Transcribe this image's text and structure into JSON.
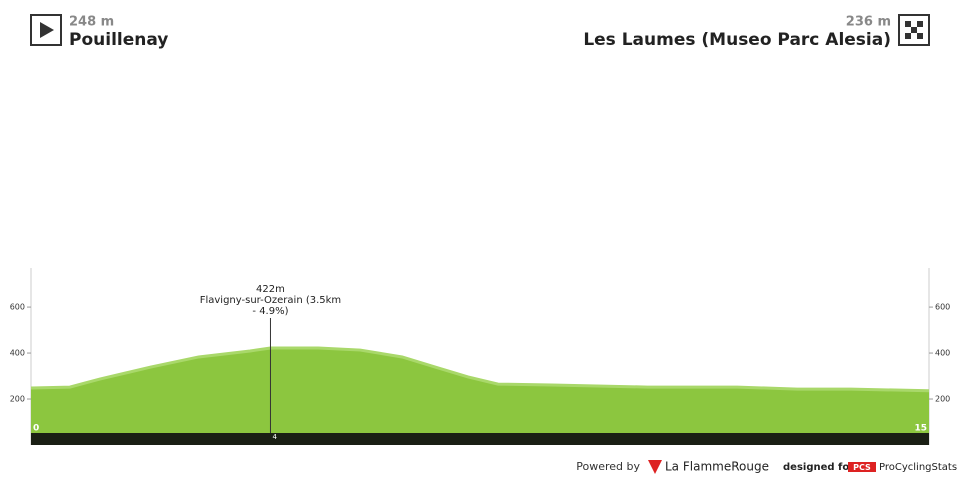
{
  "header": {
    "start_elevation": "248 m",
    "start_name": "Pouillenay",
    "finish_elevation": "236 m",
    "finish_name": "Les Laumes (Museo Parc Alesia)"
  },
  "chart_data": {
    "type": "area",
    "color": "#8cc63f",
    "top_color": "#a9d86a",
    "x": [
      0,
      0.65,
      1.15,
      2.0,
      2.8,
      3.66,
      4.0,
      4.8,
      5.5,
      6.2,
      6.8,
      7.3,
      7.8,
      8.7,
      10.3,
      11.8,
      12.8,
      13.7,
      15
    ],
    "values": [
      248,
      252,
      287,
      339,
      383,
      409,
      422,
      422,
      413,
      383,
      335,
      296,
      265,
      261,
      252,
      252,
      243,
      243,
      236
    ],
    "xlim": [
      0,
      15
    ],
    "xticks": [
      0,
      15
    ],
    "ylim": [
      0,
      770
    ],
    "yticks": [
      200,
      400,
      600
    ],
    "annotations": [
      {
        "x": 4,
        "y": 422,
        "lines": [
          "422m",
          "Flavigny-sur-Ozerain (3.5km",
          "- 4.9%)"
        ]
      }
    ]
  },
  "footer": {
    "powered_by": "Powered by",
    "brand": "La FlammeRouge",
    "designed_for": "designed for",
    "pcs": "PCS",
    "site": "ProCyclingStats"
  }
}
